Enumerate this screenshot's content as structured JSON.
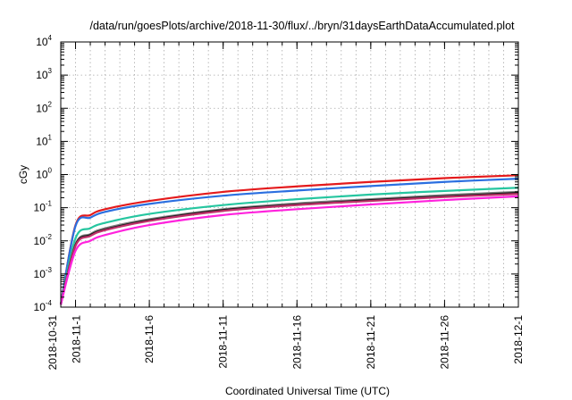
{
  "chart_data": {
    "type": "line",
    "title": "/data/run/goesPlots/archive/2018-11-30/flux/../bryn/31daysEarthDataAccumulated.plot",
    "xlabel": "Coordinated Universal Time (UTC)",
    "ylabel": "cGy",
    "y_scale": "log",
    "ylim": [
      0.0001,
      10000
    ],
    "y_ticks": [
      {
        "base": "10",
        "exp": "-4",
        "value": 0.0001
      },
      {
        "base": "10",
        "exp": "-3",
        "value": 0.001
      },
      {
        "base": "10",
        "exp": "-2",
        "value": 0.01
      },
      {
        "base": "10",
        "exp": "-1",
        "value": 0.1
      },
      {
        "base": "10",
        "exp": "0",
        "value": 1
      },
      {
        "base": "10",
        "exp": "1",
        "value": 10
      },
      {
        "base": "10",
        "exp": "2",
        "value": 100
      },
      {
        "base": "10",
        "exp": "3",
        "value": 1000
      },
      {
        "base": "10",
        "exp": "4",
        "value": 10000
      }
    ],
    "xlim": [
      "2018-10-31",
      "2018-12-01"
    ],
    "x_ticks": [
      "2018-10-31",
      "2018-11-1",
      "2018-11-6",
      "2018-11-11",
      "2018-11-16",
      "2018-11-21",
      "2018-11-26",
      "2018-12-1"
    ],
    "x_tick_values": [
      "2018-10-31",
      "2018-11-01",
      "2018-11-06",
      "2018-11-11",
      "2018-11-16",
      "2018-11-21",
      "2018-11-26",
      "2018-12-01"
    ],
    "grid": true,
    "x": [
      "2018-10-31",
      "2018-11-01",
      "2018-11-02",
      "2018-11-03",
      "2018-11-06",
      "2018-11-11",
      "2018-11-16",
      "2018-11-21",
      "2018-11-26",
      "2018-12-01"
    ],
    "series": [
      {
        "color": "#e41a1c",
        "values": [
          0.00012,
          0.03,
          0.06,
          0.09,
          0.16,
          0.3,
          0.44,
          0.6,
          0.78,
          0.95
        ]
      },
      {
        "color": "#2b6fe0",
        "values": [
          0.00012,
          0.028,
          0.05,
          0.075,
          0.13,
          0.23,
          0.33,
          0.45,
          0.6,
          0.75
        ]
      },
      {
        "color": "#26c6a0",
        "values": [
          0.00012,
          0.012,
          0.024,
          0.035,
          0.065,
          0.12,
          0.18,
          0.25,
          0.32,
          0.4
        ]
      },
      {
        "color": "#808080",
        "values": [
          0.00012,
          0.008,
          0.016,
          0.024,
          0.045,
          0.09,
          0.135,
          0.18,
          0.24,
          0.3
        ]
      },
      {
        "color": "#1a1a1a",
        "values": [
          0.00012,
          0.0075,
          0.015,
          0.022,
          0.042,
          0.085,
          0.125,
          0.17,
          0.22,
          0.28
        ]
      },
      {
        "color": "#c0306a",
        "values": [
          0.00012,
          0.007,
          0.014,
          0.021,
          0.04,
          0.08,
          0.12,
          0.16,
          0.21,
          0.26
        ]
      },
      {
        "color": "#ff22dd",
        "values": [
          0.00012,
          0.005,
          0.01,
          0.015,
          0.03,
          0.06,
          0.09,
          0.125,
          0.17,
          0.22
        ]
      }
    ]
  }
}
